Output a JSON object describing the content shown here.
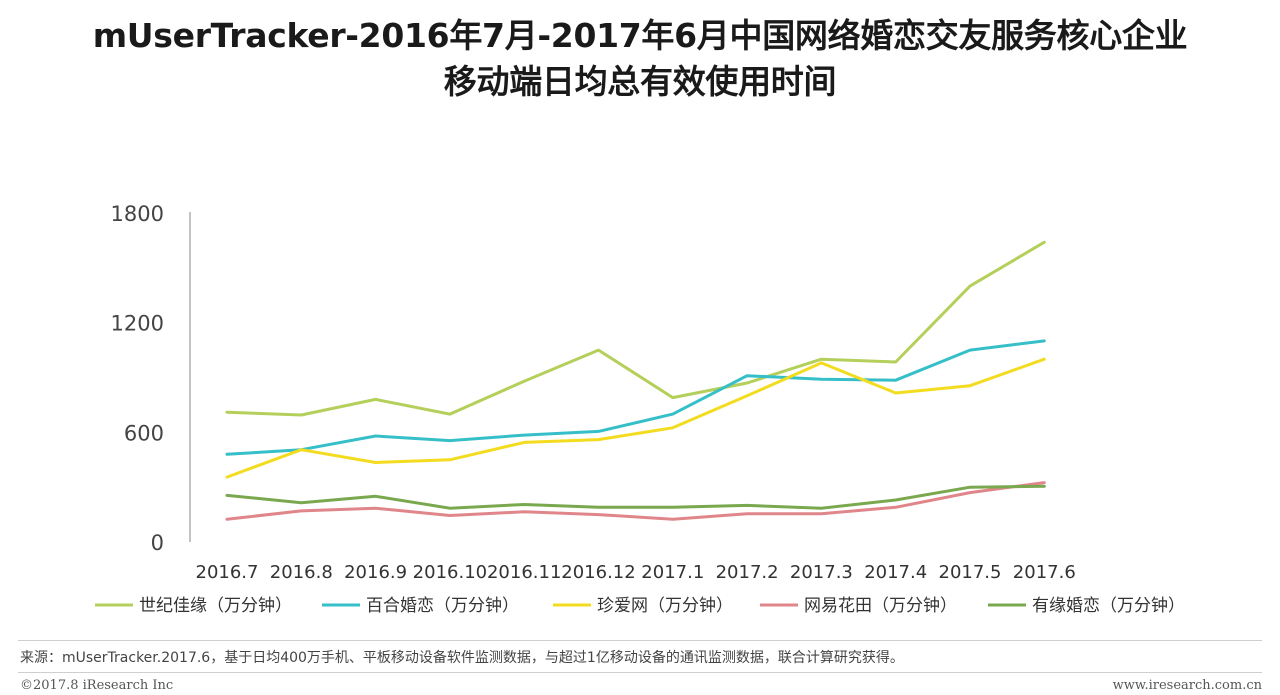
{
  "page": {
    "title_line1": "mUserTracker-2016年7月-2017年6月中国网络婚恋交友服务核心企业",
    "title_line2": "移动端日均总有效使用时间",
    "source": "来源：mUserTracker.2017.6，基于日均400万手机、平板移动设备软件监测数据，与超过1亿移动设备的通讯监测数据，联合计算研究获得。",
    "copyright": "©2017.8 iResearch Inc",
    "website": "www.iresearch.com.cn"
  },
  "chart_data": {
    "type": "line",
    "title": "mUserTracker-2016年7月-2017年6月中国网络婚恋交友服务核心企业移动端日均总有效使用时间",
    "xlabel": "",
    "ylabel": "",
    "ylim": [
      0,
      1800
    ],
    "yticks": [
      0,
      600,
      1200,
      1800
    ],
    "grid": false,
    "legend_position": "bottom",
    "categories": [
      "2016.7",
      "2016.8",
      "2016.9",
      "2016.10",
      "2016.11",
      "2016.12",
      "2017.1",
      "2017.2",
      "2017.3",
      "2017.4",
      "2017.5",
      "2017.6"
    ],
    "series": [
      {
        "name": "世纪佳缘（万分钟）",
        "color": "#b5cf5b",
        "values": [
          710,
          695,
          780,
          700,
          880,
          1050,
          790,
          870,
          1000,
          985,
          1400,
          1640
        ]
      },
      {
        "name": "百合婚恋（万分钟）",
        "color": "#36bfc9",
        "values": [
          480,
          505,
          580,
          555,
          585,
          605,
          700,
          910,
          890,
          885,
          1050,
          1100
        ]
      },
      {
        "name": "珍爱网（万分钟）",
        "color": "#f3dc1f",
        "values": [
          355,
          505,
          435,
          450,
          545,
          560,
          625,
          800,
          980,
          815,
          855,
          1000
        ]
      },
      {
        "name": "网易花田（万分钟）",
        "color": "#e0868a",
        "values": [
          125,
          170,
          185,
          145,
          165,
          150,
          125,
          155,
          155,
          190,
          270,
          325
        ]
      },
      {
        "name": "有缘婚恋（万分钟）",
        "color": "#79a84f",
        "values": [
          255,
          215,
          250,
          185,
          205,
          190,
          190,
          200,
          185,
          230,
          300,
          305
        ]
      }
    ]
  }
}
